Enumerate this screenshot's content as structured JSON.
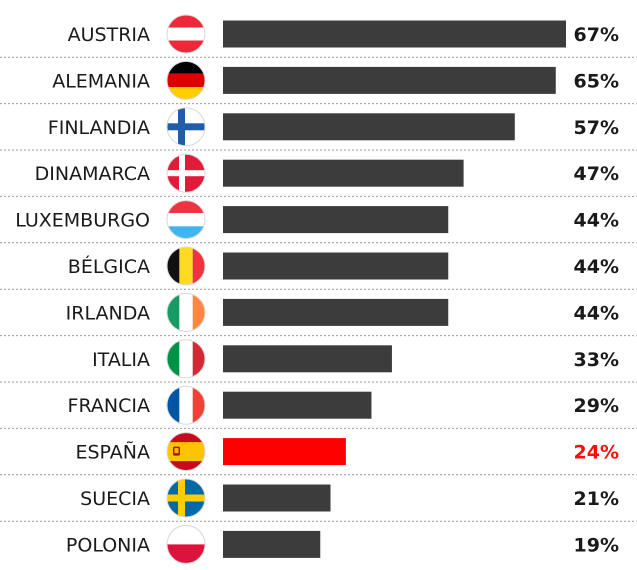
{
  "chart_data": {
    "type": "bar",
    "orientation": "horizontal",
    "unit": "%",
    "categories": [
      "AUSTRIA",
      "ALEMANIA",
      "FINLANDIA",
      "DINAMARCA",
      "LUXEMBURGO",
      "BÉLGICA",
      "IRLANDA",
      "ITALIA",
      "FRANCIA",
      "ESPAÑA",
      "SUECIA",
      "POLONIA"
    ],
    "values": [
      67,
      65,
      57,
      47,
      44,
      44,
      44,
      33,
      29,
      24,
      21,
      19
    ],
    "value_labels": [
      "67%",
      "65%",
      "57%",
      "47%",
      "44%",
      "44%",
      "44%",
      "33%",
      "29%",
      "24%",
      "21%",
      "19%"
    ],
    "flags": [
      "austria-flag-icon",
      "germany-flag-icon",
      "finland-flag-icon",
      "denmark-flag-icon",
      "luxembourg-flag-icon",
      "belgium-flag-icon",
      "ireland-flag-icon",
      "italy-flag-icon",
      "france-flag-icon",
      "spain-flag-icon",
      "sweden-flag-icon",
      "poland-flag-icon"
    ],
    "highlight": "ESPAÑA",
    "bar_color": "#3c3c3c",
    "highlight_color": "#ff0000",
    "xlim": [
      0,
      67
    ],
    "grid": false
  }
}
